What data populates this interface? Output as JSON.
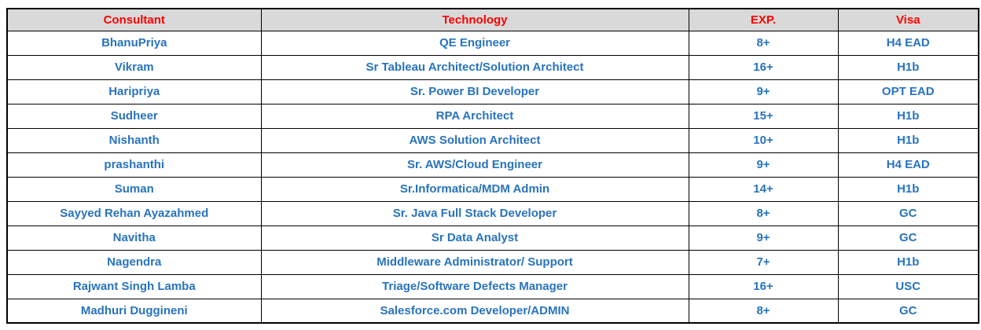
{
  "table": {
    "headers": [
      "Consultant",
      "Technology",
      "EXP.",
      "Visa"
    ],
    "rows": [
      [
        "BhanuPriya",
        "QE Engineer",
        "8+",
        "H4 EAD"
      ],
      [
        "Vikram",
        "Sr Tableau Architect/Solution Architect",
        "16+",
        "H1b"
      ],
      [
        "Haripriya",
        "Sr. Power BI  Developer",
        "9+",
        "OPT EAD"
      ],
      [
        "Sudheer",
        "RPA Architect",
        "15+",
        "H1b"
      ],
      [
        "Nishanth",
        "AWS Solution Architect",
        "10+",
        "H1b"
      ],
      [
        "prashanthi",
        "Sr. AWS/Cloud Engineer",
        "9+",
        "H4 EAD"
      ],
      [
        "Suman",
        "Sr.Informatica/MDM Admin",
        "14+",
        "H1b"
      ],
      [
        "Sayyed Rehan Ayazahmed",
        "Sr. Java Full Stack Developer",
        "8+",
        "GC"
      ],
      [
        "Navitha",
        "Sr Data Analyst",
        "9+",
        "GC"
      ],
      [
        "Nagendra",
        "Middleware Administrator/ Support",
        "7+",
        "H1b"
      ],
      [
        "Rajwant Singh Lamba",
        "Triage/Software Defects Manager",
        "16+",
        "USC"
      ],
      [
        "Madhuri Duggineni",
        "Salesforce.com Developer/ADMIN",
        "8+",
        "GC"
      ]
    ],
    "colors": {
      "header_bg": "#d9d9d9",
      "header_text": "#ff0000",
      "cell_text": "#2873be",
      "border": "#000000"
    }
  }
}
